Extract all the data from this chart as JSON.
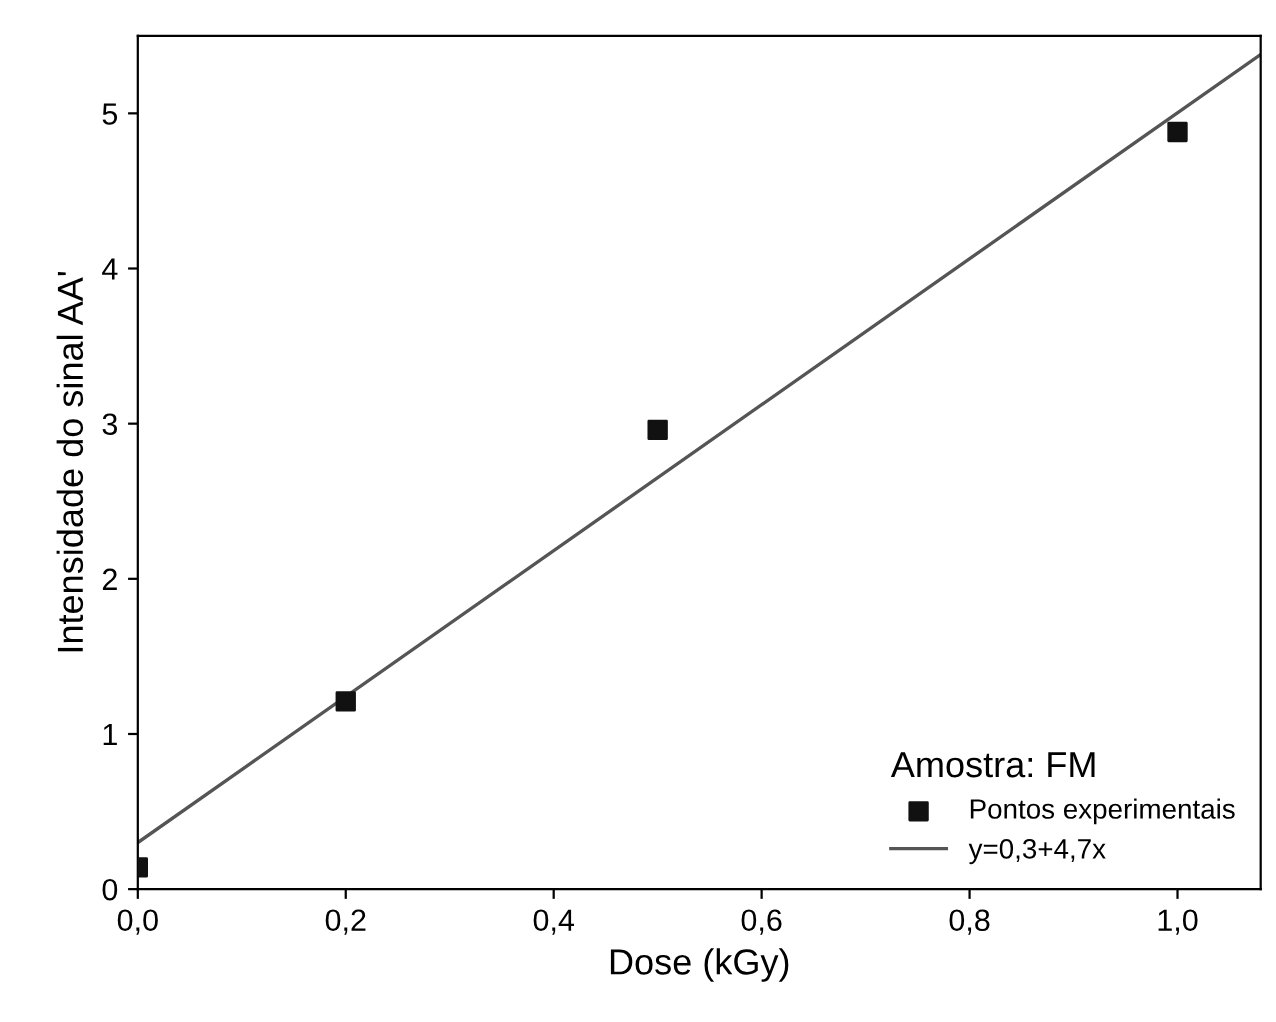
{
  "chart_data": {
    "type": "scatter",
    "xlabel": "Dose (kGy)",
    "ylabel": "Intensidade do sinal AA'",
    "legend_title": "Amostra: FM",
    "xlim": [
      0,
      1.08
    ],
    "ylim": [
      0,
      5.5
    ],
    "xticks": [
      {
        "value": 0,
        "label": "0,0"
      },
      {
        "value": 0.2,
        "label": "0,2"
      },
      {
        "value": 0.4,
        "label": "0,4"
      },
      {
        "value": 0.6,
        "label": "0,6"
      },
      {
        "value": 0.8,
        "label": "0,8"
      },
      {
        "value": 1.0,
        "label": "1,0"
      }
    ],
    "yticks": [
      0,
      1,
      2,
      3,
      4,
      5
    ],
    "series": [
      {
        "name": "Pontos experimentais",
        "marker": "square",
        "color": "#111111",
        "x": [
          0,
          0.2,
          0.5,
          1.0
        ],
        "values": [
          0.14,
          1.21,
          2.96,
          4.88
        ]
      },
      {
        "name": "y=0,3+4,7x",
        "type": "line",
        "color": "#555555",
        "x": [
          0,
          1.08
        ],
        "values": [
          0.3,
          5.38
        ]
      }
    ],
    "grid": false,
    "legend": "bottom right"
  }
}
